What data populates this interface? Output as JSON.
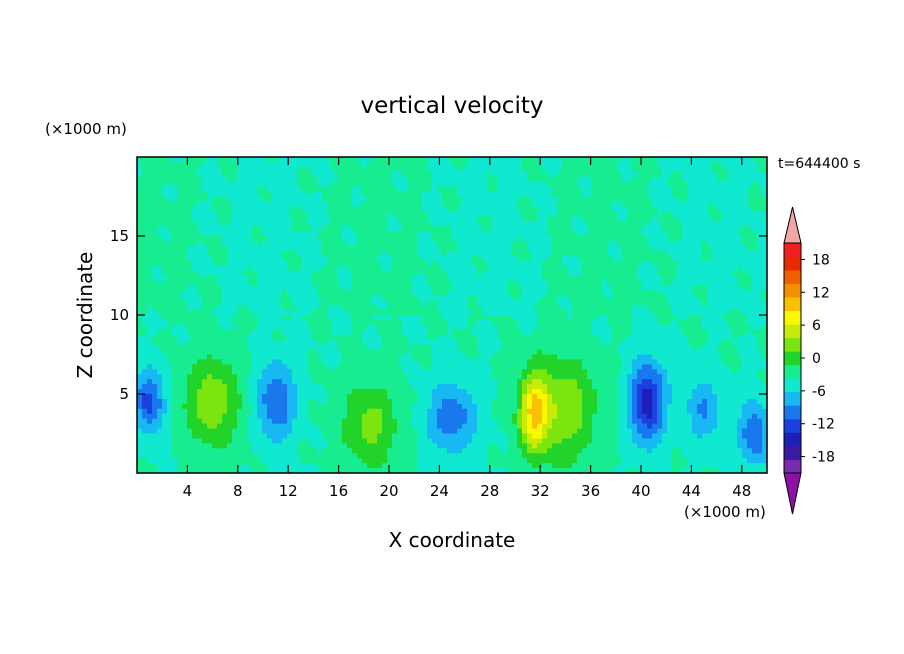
{
  "chart_data": {
    "type": "heatmap",
    "title": "vertical velocity",
    "xlabel": "X coordinate",
    "ylabel": "Z coordinate",
    "x_unit": "(×1000 m)",
    "y_unit": "(×1000 m)",
    "time_label": "t=644400 s",
    "xlim": [
      0,
      50
    ],
    "ylim": [
      0,
      20
    ],
    "x_ticks": [
      4,
      8,
      12,
      16,
      20,
      24,
      28,
      32,
      36,
      40,
      44,
      48
    ],
    "y_ticks": [
      5,
      10,
      15
    ],
    "colorbar": {
      "tick_labels": [
        "18",
        "12",
        "6",
        "0",
        "-6",
        "-12",
        "-18"
      ],
      "tick_values": [
        18,
        12,
        6,
        0,
        -6,
        -12,
        -18
      ],
      "range": [
        -21,
        21
      ],
      "step": 3,
      "extend": "both",
      "upper_extend_color": "#f4a6a6",
      "lower_extend_color": "#8e10a6",
      "colors": [
        "#7a2bb0",
        "#3a1aa0",
        "#1d1fb8",
        "#1a40e0",
        "#1a78ee",
        "#18b8f2",
        "#10e8d0",
        "#18ec90",
        "#22d42a",
        "#7ce40e",
        "#c8ec08",
        "#fbf800",
        "#f8c000",
        "#f49000",
        "#f06000",
        "#e82a00",
        "#f41e1e"
      ]
    },
    "features": [
      {
        "x": 1,
        "z": 4.5,
        "w": -10,
        "sx": 1.2,
        "sz": 2
      },
      {
        "x": 6,
        "z": 4.5,
        "w": 8,
        "sx": 2.2,
        "sz": 3
      },
      {
        "x": 11,
        "z": 4.5,
        "w": -9,
        "sx": 1.5,
        "sz": 2.5
      },
      {
        "x": 18.5,
        "z": 3,
        "w": 7,
        "sx": 2.2,
        "sz": 2.8
      },
      {
        "x": 25,
        "z": 3.5,
        "w": -8,
        "sx": 2,
        "sz": 2.2
      },
      {
        "x": 31.5,
        "z": 3.8,
        "w": 14,
        "sx": 1.2,
        "sz": 2.5
      },
      {
        "x": 34,
        "z": 4,
        "w": 8,
        "sx": 2.5,
        "sz": 3.5
      },
      {
        "x": 40.5,
        "z": 4.5,
        "w": -14,
        "sx": 1.4,
        "sz": 2.5
      },
      {
        "x": 45,
        "z": 4,
        "w": -6,
        "sx": 1.5,
        "sz": 2
      },
      {
        "x": 49,
        "z": 2.5,
        "w": -9,
        "sx": 1.2,
        "sz": 2
      }
    ]
  }
}
